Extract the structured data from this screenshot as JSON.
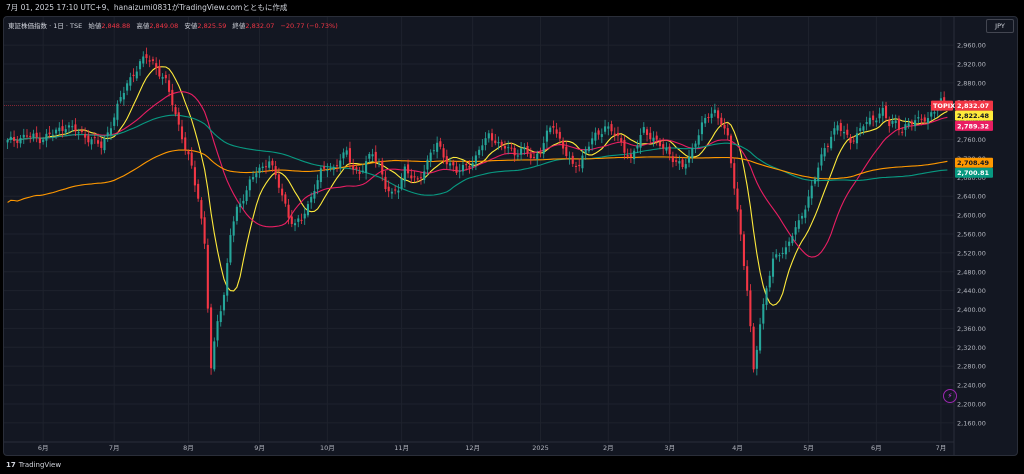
{
  "header": {
    "title": "7月 01, 2025 17:10 UTC+9、hanaizumi0831がTradingView.comとともに作成"
  },
  "legend": {
    "symbol": "東証株価指数 · 1日 · TSE",
    "open_label": "始値",
    "open": "2,848.88",
    "high_label": "高値",
    "high": "2,849.08",
    "low_label": "安値",
    "low": "2,825.59",
    "close_label": "終値",
    "close": "2,832.07",
    "change": "−20.77 (−0.73%)"
  },
  "currency": "JPY",
  "footer": {
    "brand": "TradingView",
    "logo": "17"
  },
  "colors": {
    "up": "#26a69a",
    "down": "#f23645",
    "ma_short": "#ffeb3b",
    "ma_mid": "#e91e63",
    "ma_long_orange": "#ff9800",
    "ma_long_teal": "#089981",
    "background": "#131722"
  },
  "price_badges": [
    {
      "label": "TOPIX",
      "value": "2,832.07",
      "color": "#f23645",
      "price": 2832
    },
    {
      "label": "",
      "value": "2,822.48",
      "color": "#ffeb3b",
      "price": 2822
    },
    {
      "label": "",
      "value": "2,789.32",
      "color": "#e91e63",
      "price": 2789
    },
    {
      "label": "",
      "value": "2,708.49",
      "color": "#ff9800",
      "price": 2711
    },
    {
      "label": "",
      "value": "2,700.81",
      "color": "#089981",
      "price": 2700
    }
  ],
  "chart_data": {
    "type": "candlestick",
    "ylim": [
      2130,
      2990
    ],
    "y_ticks": [
      "2,160.00",
      "2,200.00",
      "2,240.00",
      "2,280.00",
      "2,320.00",
      "2,360.00",
      "2,400.00",
      "2,440.00",
      "2,480.00",
      "2,520.00",
      "2,560.00",
      "2,600.00",
      "2,640.00",
      "2,680.00",
      "2,720.00",
      "2,760.00",
      "2,800.00",
      "2,840.00",
      "2,880.00",
      "2,920.00",
      "2,960.00"
    ],
    "y_tick_values": [
      2160,
      2200,
      2240,
      2280,
      2320,
      2360,
      2400,
      2440,
      2480,
      2520,
      2560,
      2600,
      2640,
      2680,
      2720,
      2760,
      2800,
      2840,
      2880,
      2920,
      2960
    ],
    "x_ticks": [
      "6月",
      "7月",
      "8月",
      "9月",
      "10月",
      "11月",
      "12月",
      "2025",
      "2月",
      "3月",
      "4月",
      "5月",
      "6月",
      "7月"
    ],
    "x_tick_index": [
      11,
      33,
      56,
      78,
      99,
      122,
      144,
      165,
      186,
      205,
      226,
      248,
      269,
      289
    ],
    "last_close_line": 2832,
    "close_path": [
      [
        0,
        2755
      ],
      [
        3,
        2762
      ],
      [
        6,
        2768
      ],
      [
        10,
        2762
      ],
      [
        14,
        2772
      ],
      [
        18,
        2790
      ],
      [
        22,
        2775
      ],
      [
        26,
        2760
      ],
      [
        29,
        2745
      ],
      [
        31,
        2775
      ],
      [
        33,
        2810
      ],
      [
        35,
        2845
      ],
      [
        37,
        2880
      ],
      [
        39,
        2900
      ],
      [
        41,
        2920
      ],
      [
        43,
        2935
      ],
      [
        45,
        2925
      ],
      [
        47,
        2900
      ],
      [
        49,
        2880
      ],
      [
        51,
        2840
      ],
      [
        53,
        2790
      ],
      [
        55,
        2740
      ],
      [
        57,
        2700
      ],
      [
        59,
        2640
      ],
      [
        61,
        2540
      ],
      [
        63,
        2270
      ],
      [
        65,
        2380
      ],
      [
        67,
        2430
      ],
      [
        69,
        2560
      ],
      [
        71,
        2610
      ],
      [
        73,
        2640
      ],
      [
        75,
        2670
      ],
      [
        77,
        2690
      ],
      [
        79,
        2700
      ],
      [
        81,
        2720
      ],
      [
        83,
        2680
      ],
      [
        85,
        2640
      ],
      [
        87,
        2600
      ],
      [
        89,
        2580
      ],
      [
        91,
        2590
      ],
      [
        93,
        2620
      ],
      [
        95,
        2660
      ],
      [
        97,
        2690
      ],
      [
        99,
        2700
      ],
      [
        101,
        2700
      ],
      [
        103,
        2720
      ],
      [
        105,
        2730
      ],
      [
        107,
        2700
      ],
      [
        109,
        2690
      ],
      [
        111,
        2710
      ],
      [
        113,
        2730
      ],
      [
        115,
        2710
      ],
      [
        117,
        2660
      ],
      [
        119,
        2640
      ],
      [
        121,
        2660
      ],
      [
        123,
        2700
      ],
      [
        125,
        2680
      ],
      [
        127,
        2670
      ],
      [
        129,
        2700
      ],
      [
        131,
        2730
      ],
      [
        133,
        2750
      ],
      [
        135,
        2725
      ],
      [
        137,
        2710
      ],
      [
        139,
        2690
      ],
      [
        141,
        2700
      ],
      [
        143,
        2710
      ],
      [
        145,
        2720
      ],
      [
        147,
        2750
      ],
      [
        149,
        2770
      ],
      [
        151,
        2760
      ],
      [
        153,
        2740
      ],
      [
        155,
        2745
      ],
      [
        157,
        2730
      ],
      [
        159,
        2740
      ],
      [
        161,
        2730
      ],
      [
        163,
        2720
      ],
      [
        165,
        2740
      ],
      [
        167,
        2770
      ],
      [
        169,
        2790
      ],
      [
        171,
        2760
      ],
      [
        173,
        2730
      ],
      [
        175,
        2700
      ],
      [
        177,
        2710
      ],
      [
        179,
        2740
      ],
      [
        181,
        2760
      ],
      [
        183,
        2770
      ],
      [
        185,
        2790
      ],
      [
        187,
        2780
      ],
      [
        189,
        2760
      ],
      [
        191,
        2740
      ],
      [
        193,
        2720
      ],
      [
        195,
        2750
      ],
      [
        197,
        2780
      ],
      [
        199,
        2770
      ],
      [
        201,
        2755
      ],
      [
        203,
        2740
      ],
      [
        205,
        2730
      ],
      [
        207,
        2715
      ],
      [
        209,
        2700
      ],
      [
        211,
        2720
      ],
      [
        213,
        2760
      ],
      [
        215,
        2790
      ],
      [
        217,
        2810
      ],
      [
        219,
        2820
      ],
      [
        221,
        2800
      ],
      [
        223,
        2760
      ],
      [
        225,
        2660
      ],
      [
        227,
        2560
      ],
      [
        229,
        2440
      ],
      [
        231,
        2270
      ],
      [
        233,
        2370
      ],
      [
        235,
        2450
      ],
      [
        237,
        2500
      ],
      [
        239,
        2520
      ],
      [
        241,
        2530
      ],
      [
        243,
        2560
      ],
      [
        245,
        2580
      ],
      [
        247,
        2620
      ],
      [
        249,
        2660
      ],
      [
        251,
        2700
      ],
      [
        253,
        2740
      ],
      [
        255,
        2770
      ],
      [
        257,
        2790
      ],
      [
        259,
        2770
      ],
      [
        261,
        2760
      ],
      [
        263,
        2770
      ],
      [
        265,
        2790
      ],
      [
        267,
        2800
      ],
      [
        269,
        2810
      ],
      [
        271,
        2820
      ],
      [
        273,
        2790
      ],
      [
        275,
        2800
      ],
      [
        277,
        2780
      ],
      [
        279,
        2790
      ],
      [
        281,
        2800
      ],
      [
        283,
        2810
      ],
      [
        285,
        2800
      ],
      [
        287,
        2820
      ],
      [
        289,
        2845
      ],
      [
        291,
        2832
      ]
    ],
    "n_bars": 292,
    "series": [
      {
        "name": "",
        "color": "#ffeb3b",
        "window": 10
      },
      {
        "name": "",
        "color": "#e91e63",
        "window": 25
      },
      {
        "name": "",
        "color": "#089981",
        "window": 75
      },
      {
        "name": "",
        "color": "#ff9800",
        "window": 200
      }
    ]
  }
}
